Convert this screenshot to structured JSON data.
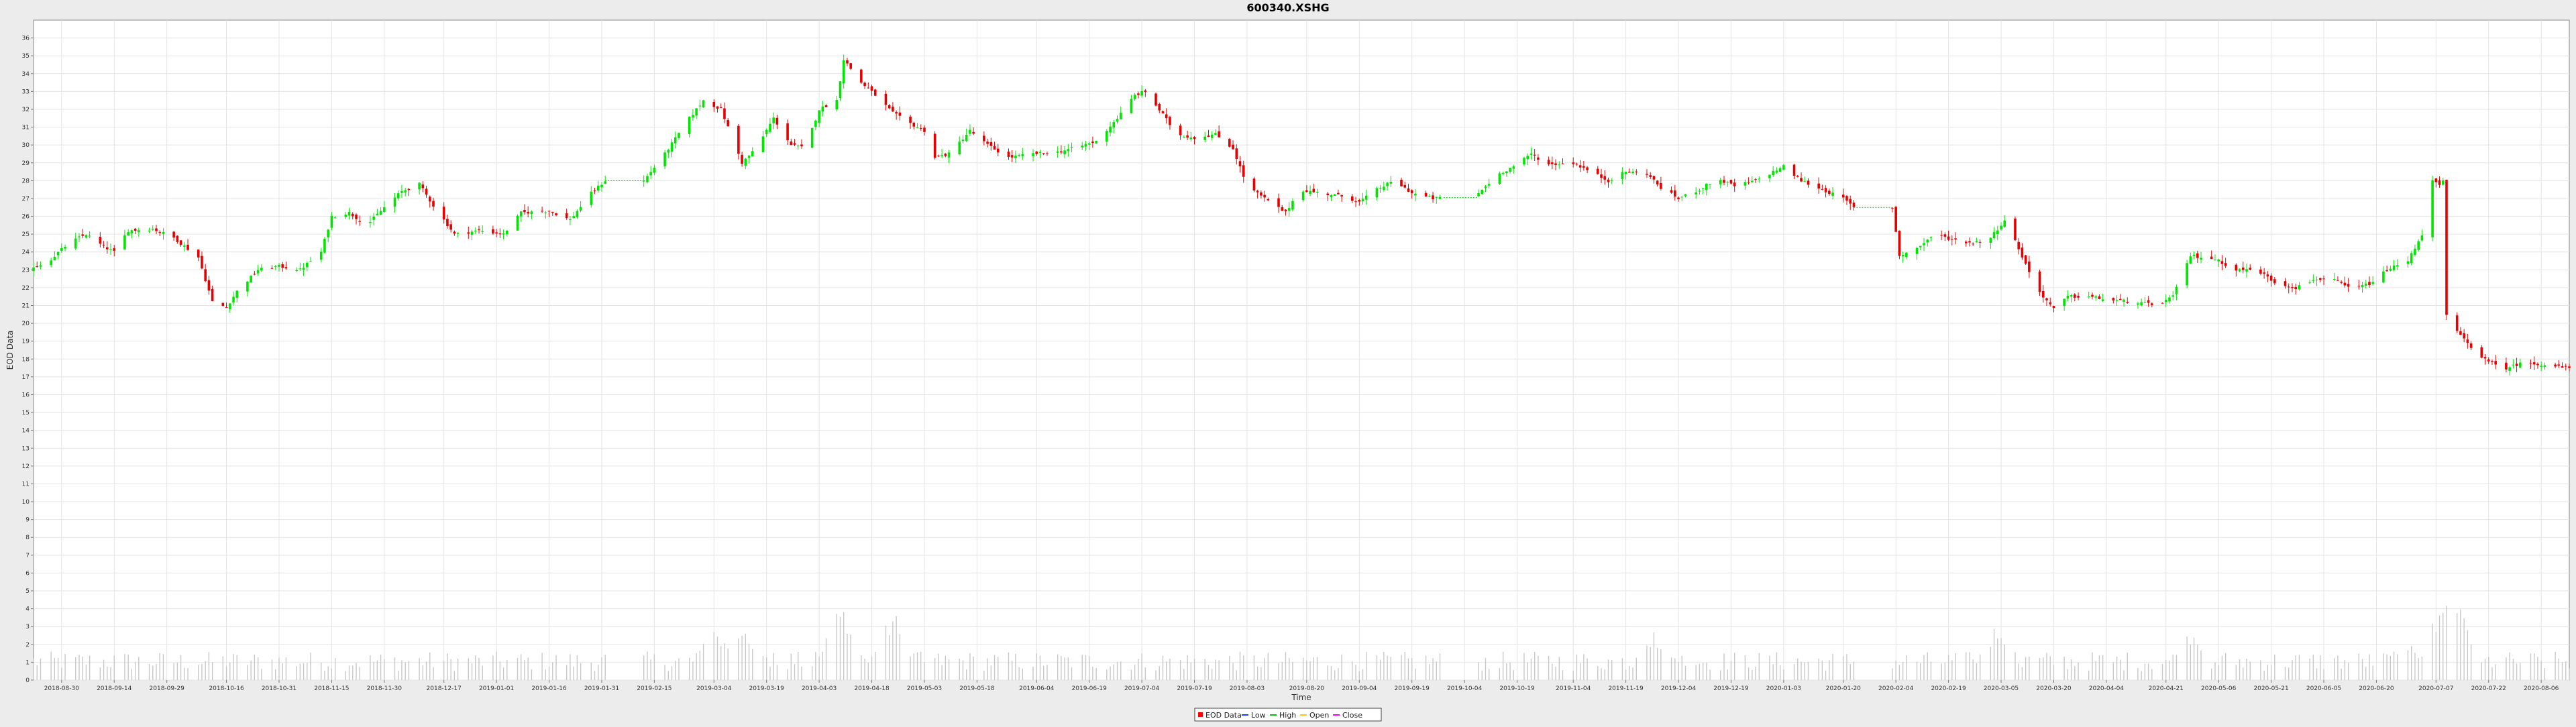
{
  "chart_data": {
    "type": "candlestick",
    "title": "600340.XSHG",
    "xlabel": "Time",
    "ylabel": "EOD Data",
    "ylim": [
      0,
      37
    ],
    "yticks": [
      0,
      1,
      2,
      3,
      4,
      5,
      6,
      7,
      8,
      9,
      10,
      11,
      12,
      13,
      14,
      15,
      16,
      17,
      18,
      19,
      20,
      21,
      22,
      23,
      24,
      25,
      26,
      27,
      28,
      29,
      30,
      31,
      32,
      33,
      34,
      35,
      36
    ],
    "xlim": [
      "2018-08-22",
      "2020-08-14"
    ],
    "grid": true,
    "legend_position": "bottom-center",
    "xtick_labels": [
      "2018-08-30",
      "2018-09-14",
      "2018-09-29",
      "2018-10-16",
      "2018-10-31",
      "2018-11-15",
      "2018-11-30",
      "2018-12-17",
      "2019-01-01",
      "2019-01-16",
      "2019-01-31",
      "2019-02-15",
      "2019-03-04",
      "2019-03-19",
      "2019-04-03",
      "2019-04-18",
      "2019-05-03",
      "2019-05-18",
      "2019-06-04",
      "2019-06-19",
      "2019-07-04",
      "2019-07-19",
      "2019-08-03",
      "2019-08-20",
      "2019-09-04",
      "2019-09-19",
      "2019-10-04",
      "2019-10-19",
      "2019-11-04",
      "2019-11-19",
      "2019-12-04",
      "2019-12-19",
      "2020-01-03",
      "2020-01-20",
      "2020-02-04",
      "2020-02-19",
      "2020-03-05",
      "2020-03-20",
      "2020-04-04",
      "2020-04-21",
      "2020-05-06",
      "2020-05-21",
      "2020-06-05",
      "2020-06-20",
      "2020-07-07",
      "2020-07-22",
      "2020-08-06"
    ],
    "legend": [
      {
        "label": "EOD Data",
        "color": "#ff0000"
      },
      {
        "label": "Low",
        "color": "#1e3cff"
      },
      {
        "label": "High",
        "color": "#00c800"
      },
      {
        "label": "Open",
        "color": "#ffc800"
      },
      {
        "label": "Close",
        "color": "#ff00ff"
      }
    ],
    "colors": {
      "up": "#00e600",
      "down": "#e60000",
      "volume": "#c8c8c8",
      "gap": "#00cc00"
    },
    "close_path": [
      [
        "2018-08-22",
        23.1
      ],
      [
        "2018-08-27",
        23.6
      ],
      [
        "2018-09-01",
        24.5
      ],
      [
        "2018-09-06",
        25.0
      ],
      [
        "2018-09-11",
        24.3
      ],
      [
        "2018-09-14",
        24.0
      ],
      [
        "2018-09-18",
        25.2
      ],
      [
        "2018-09-25",
        25.3
      ],
      [
        "2018-10-01",
        24.8
      ],
      [
        "2018-10-08",
        23.7
      ],
      [
        "2018-10-12",
        21.2
      ],
      [
        "2018-10-16",
        20.9
      ],
      [
        "2018-10-19",
        21.8
      ],
      [
        "2018-10-25",
        23.0
      ],
      [
        "2018-10-31",
        23.2
      ],
      [
        "2018-11-06",
        23.0
      ],
      [
        "2018-11-12",
        24.0
      ],
      [
        "2018-11-15",
        26.0
      ],
      [
        "2018-11-20",
        26.2
      ],
      [
        "2018-11-25",
        25.5
      ],
      [
        "2018-11-30",
        26.5
      ],
      [
        "2018-12-05",
        27.4
      ],
      [
        "2018-12-10",
        27.8
      ],
      [
        "2018-12-14",
        26.6
      ],
      [
        "2018-12-20",
        25.0
      ],
      [
        "2018-12-27",
        25.2
      ],
      [
        "2019-01-03",
        25.0
      ],
      [
        "2019-01-08",
        26.2
      ],
      [
        "2019-01-16",
        26.3
      ],
      [
        "2019-01-22",
        25.8
      ],
      [
        "2019-01-28",
        27.3
      ],
      [
        "2019-02-01",
        28.0
      ],
      [
        "2019-02-12",
        28.0
      ],
      [
        "2019-02-18",
        29.5
      ],
      [
        "2019-02-25",
        31.5
      ],
      [
        "2019-03-01",
        32.5
      ],
      [
        "2019-03-06",
        32.0
      ],
      [
        "2019-03-12",
        29.0
      ],
      [
        "2019-03-16",
        29.8
      ],
      [
        "2019-03-21",
        31.5
      ],
      [
        "2019-03-26",
        30.0
      ],
      [
        "2019-03-30",
        29.8
      ],
      [
        "2019-04-03",
        32.0
      ],
      [
        "2019-04-08",
        32.5
      ],
      [
        "2019-04-10",
        34.8
      ],
      [
        "2019-04-15",
        33.5
      ],
      [
        "2019-04-19",
        32.8
      ],
      [
        "2019-04-24",
        31.8
      ],
      [
        "2019-04-28",
        31.3
      ],
      [
        "2019-05-03",
        30.8
      ],
      [
        "2019-05-06",
        29.3
      ],
      [
        "2019-05-10",
        29.5
      ],
      [
        "2019-05-16",
        30.8
      ],
      [
        "2019-05-21",
        30.0
      ],
      [
        "2019-05-27",
        29.3
      ],
      [
        "2019-06-03",
        29.5
      ],
      [
        "2019-06-10",
        29.6
      ],
      [
        "2019-06-16",
        29.9
      ],
      [
        "2019-06-21",
        30.2
      ],
      [
        "2019-06-27",
        31.5
      ],
      [
        "2019-07-02",
        32.8
      ],
      [
        "2019-07-05",
        33.0
      ],
      [
        "2019-07-10",
        31.7
      ],
      [
        "2019-07-14",
        30.6
      ],
      [
        "2019-07-19",
        30.4
      ],
      [
        "2019-07-25",
        30.6
      ],
      [
        "2019-07-30",
        29.8
      ],
      [
        "2019-08-03",
        27.7
      ],
      [
        "2019-08-08",
        27.0
      ],
      [
        "2019-08-14",
        26.2
      ],
      [
        "2019-08-18",
        27.5
      ],
      [
        "2019-08-24",
        27.3
      ],
      [
        "2019-08-31",
        27.1
      ],
      [
        "2019-09-04",
        26.8
      ],
      [
        "2019-09-09",
        27.5
      ],
      [
        "2019-09-14",
        28.0
      ],
      [
        "2019-09-19",
        27.3
      ],
      [
        "2019-09-25",
        27.0
      ],
      [
        "2019-10-01",
        27.1
      ],
      [
        "2019-10-08",
        27.3
      ],
      [
        "2019-10-14",
        28.4
      ],
      [
        "2019-10-19",
        28.9
      ],
      [
        "2019-10-23",
        29.5
      ],
      [
        "2019-10-28",
        28.9
      ],
      [
        "2019-11-04",
        29.0
      ],
      [
        "2019-11-08",
        28.6
      ],
      [
        "2019-11-14",
        28.0
      ],
      [
        "2019-11-19",
        28.5
      ],
      [
        "2019-11-25",
        28.4
      ],
      [
        "2019-11-29",
        27.6
      ],
      [
        "2019-12-04",
        27.0
      ],
      [
        "2019-12-10",
        27.5
      ],
      [
        "2019-12-15",
        28.1
      ],
      [
        "2019-12-20",
        27.7
      ],
      [
        "2019-12-26",
        28.0
      ],
      [
        "2020-01-03",
        28.8
      ],
      [
        "2020-01-08",
        28.0
      ],
      [
        "2020-01-14",
        27.5
      ],
      [
        "2020-01-20",
        27.0
      ],
      [
        "2020-01-23",
        26.5
      ],
      [
        "2020-02-03",
        26.5
      ],
      [
        "2020-02-05",
        23.8
      ],
      [
        "2020-02-10",
        24.2
      ],
      [
        "2020-02-15",
        25.0
      ],
      [
        "2020-02-20",
        24.7
      ],
      [
        "2020-02-26",
        24.5
      ],
      [
        "2020-03-02",
        24.8
      ],
      [
        "2020-03-06",
        25.8
      ],
      [
        "2020-03-10",
        24.2
      ],
      [
        "2020-03-15",
        22.0
      ],
      [
        "2020-03-20",
        20.8
      ],
      [
        "2020-03-24",
        21.5
      ],
      [
        "2020-03-30",
        21.5
      ],
      [
        "2020-04-05",
        21.3
      ],
      [
        "2020-04-12",
        21.2
      ],
      [
        "2020-04-18",
        21.0
      ],
      [
        "2020-04-23",
        21.5
      ],
      [
        "2020-04-28",
        23.8
      ],
      [
        "2020-05-05",
        23.6
      ],
      [
        "2020-05-11",
        23.0
      ],
      [
        "2020-05-17",
        23.0
      ],
      [
        "2020-05-22",
        22.3
      ],
      [
        "2020-05-28",
        22.0
      ],
      [
        "2020-06-03",
        22.5
      ],
      [
        "2020-06-08",
        22.4
      ],
      [
        "2020-06-13",
        21.9
      ],
      [
        "2020-06-19",
        22.3
      ],
      [
        "2020-06-23",
        23.0
      ],
      [
        "2020-06-29",
        23.5
      ],
      [
        "2020-07-03",
        25.0
      ],
      [
        "2020-07-06",
        28.0
      ],
      [
        "2020-07-08",
        27.7
      ],
      [
        "2020-07-09",
        28.0
      ],
      [
        "2020-07-10",
        20.4
      ],
      [
        "2020-07-14",
        19.3
      ],
      [
        "2020-07-18",
        18.5
      ],
      [
        "2020-07-22",
        17.8
      ],
      [
        "2020-07-27",
        17.5
      ],
      [
        "2020-08-01",
        17.8
      ],
      [
        "2020-08-06",
        17.7
      ],
      [
        "2020-08-13",
        17.5
      ]
    ],
    "gaps": [
      [
        "2019-02-01",
        "2019-02-12"
      ],
      [
        "2019-09-28",
        "2019-10-08"
      ],
      [
        "2020-01-23",
        "2020-02-03"
      ]
    ],
    "volume_peaks": [
      [
        "2019-03-04",
        3.1
      ],
      [
        "2019-03-12",
        3.3
      ],
      [
        "2019-04-09",
        4.2
      ],
      [
        "2019-04-24",
        3.7
      ],
      [
        "2019-11-27",
        2.7
      ],
      [
        "2020-03-04",
        3.1
      ],
      [
        "2020-04-27",
        2.8
      ],
      [
        "2020-06-28",
        2.3
      ],
      [
        "2020-07-09",
        4.4
      ],
      [
        "2020-07-13",
        4.1
      ]
    ]
  }
}
